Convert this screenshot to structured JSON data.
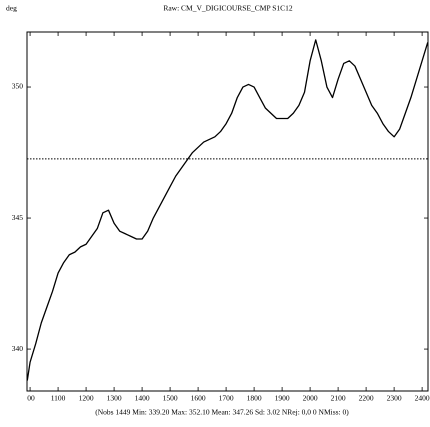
{
  "chart_data": {
    "type": "line",
    "title": "Raw: CM_V_DIGICOURSE_CMP S1C12",
    "y_label": "deg",
    "footer": "(Nobs 1449 Min: 339.20 Max: 352.10 Mean: 347.26 Sd: 3.02 NRej: 0,0 0 NMiss: 0)",
    "x": [
      990,
      1000,
      1020,
      1040,
      1060,
      1080,
      1100,
      1120,
      1140,
      1160,
      1180,
      1200,
      1220,
      1240,
      1260,
      1280,
      1300,
      1320,
      1340,
      1360,
      1380,
      1400,
      1420,
      1440,
      1460,
      1480,
      1500,
      1520,
      1540,
      1560,
      1580,
      1600,
      1620,
      1640,
      1660,
      1680,
      1700,
      1720,
      1740,
      1760,
      1780,
      1800,
      1820,
      1840,
      1860,
      1880,
      1900,
      1920,
      1940,
      1960,
      1980,
      2000,
      2020,
      2040,
      2060,
      2080,
      2100,
      2120,
      2140,
      2160,
      2180,
      2200,
      2220,
      2240,
      2260,
      2280,
      2300,
      2320,
      2340,
      2360,
      2380,
      2400,
      2420
    ],
    "series": [
      {
        "color": "#000000",
        "values": [
          338.8,
          339.5,
          340.2,
          341.0,
          341.6,
          342.2,
          342.9,
          343.3,
          343.6,
          343.7,
          343.9,
          344.0,
          344.3,
          344.6,
          345.2,
          345.3,
          344.8,
          344.5,
          344.4,
          344.3,
          344.2,
          344.2,
          344.5,
          345.0,
          345.4,
          345.8,
          346.2,
          346.6,
          346.9,
          347.2,
          347.5,
          347.7,
          347.9,
          348.0,
          348.1,
          348.3,
          348.6,
          349.0,
          349.6,
          350.0,
          350.1,
          350.0,
          349.6,
          349.2,
          349.0,
          348.8,
          348.8,
          348.8,
          349.0,
          349.3,
          349.8,
          351.0,
          351.8,
          351.0,
          350.0,
          349.6,
          350.3,
          350.9,
          351.0,
          350.8,
          350.3,
          349.8,
          349.3,
          349.0,
          348.6,
          348.3,
          348.1,
          348.4,
          349.0,
          349.6,
          350.3,
          351.0,
          351.7
        ]
      }
    ],
    "mean_line": 347.26,
    "xlim": [
      989,
      2421
    ],
    "ylim": [
      338.4,
      352.1
    ],
    "xticks": [
      {
        "value": 1000,
        "label": "00"
      },
      1100,
      1200,
      1300,
      1400,
      1500,
      1600,
      1700,
      1800,
      1900,
      2000,
      2100,
      2200,
      2300,
      2400
    ],
    "yticks": [
      340,
      345,
      350
    ]
  }
}
